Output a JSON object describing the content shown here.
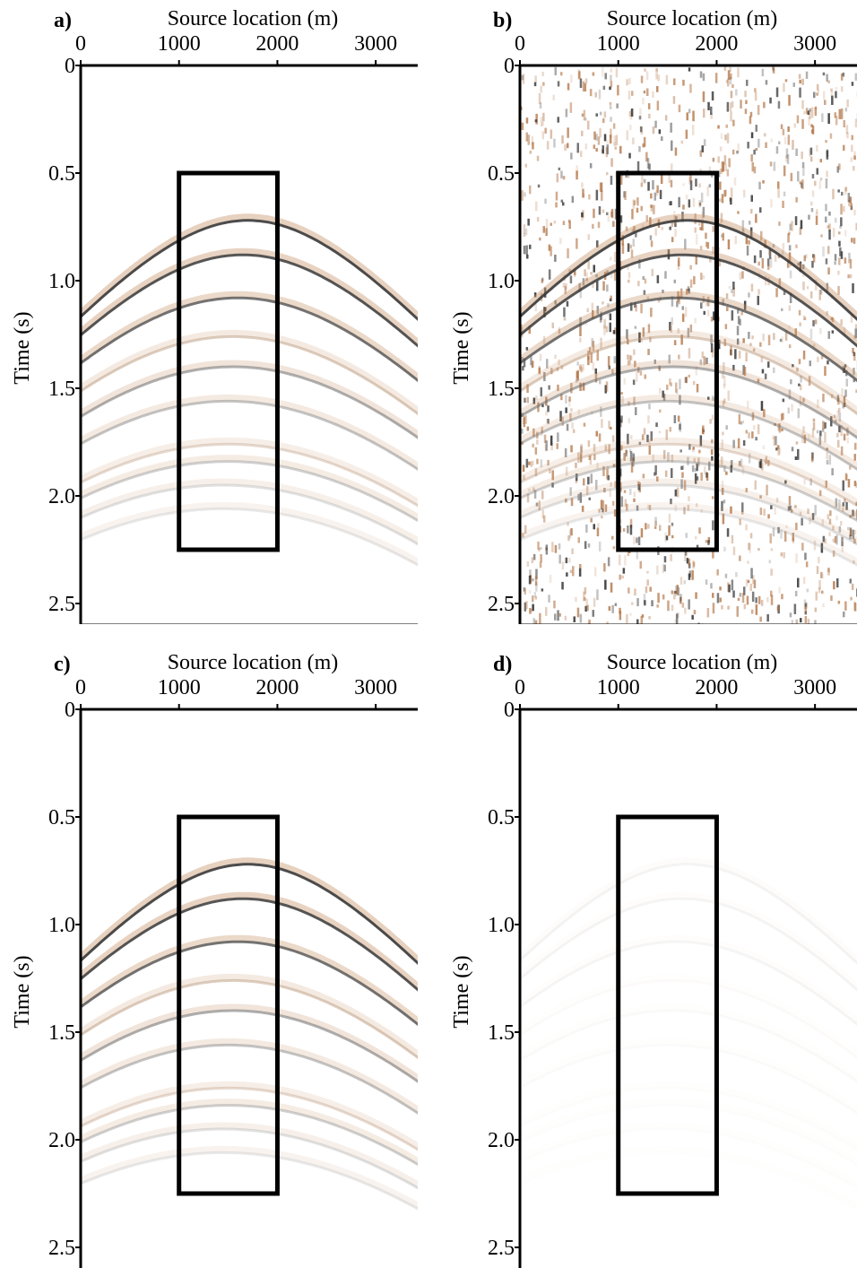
{
  "figure": {
    "panels": [
      {
        "id": "a",
        "label": "a)",
        "xlabel": "Source location (m)",
        "ylabel": "Time (s)",
        "content": "clean",
        "frame": "full"
      },
      {
        "id": "b",
        "label": "b)",
        "xlabel": "Source location (m)",
        "ylabel": "Time (s)",
        "content": "noisy",
        "frame": "left-top-bottom"
      },
      {
        "id": "c",
        "label": "c)",
        "xlabel": "Source location (m)",
        "ylabel": "Time (s)",
        "content": "denoised",
        "frame": "left-top-right"
      },
      {
        "id": "d",
        "label": "d)",
        "xlabel": "Source location (m)",
        "ylabel": "Time (s)",
        "content": "residual",
        "frame": "left-top"
      }
    ],
    "x_ticks": [
      "0",
      "1000",
      "2000",
      "3000"
    ],
    "y_ticks": [
      "0",
      "0.5",
      "1.0",
      "1.5",
      "2.0",
      "2.5"
    ]
  },
  "chart_data": {
    "type": "heatmap",
    "x_axis": {
      "label": "Source location (m)",
      "range": [
        0,
        3500
      ],
      "ticks": [
        0,
        1000,
        2000,
        3000
      ]
    },
    "y_axis": {
      "label": "Time (s)",
      "range": [
        0,
        2.6
      ],
      "ticks": [
        0,
        0.5,
        1.0,
        1.5,
        2.0,
        2.5
      ],
      "inverted": true
    },
    "highlight_box": {
      "x": [
        1000,
        2000
      ],
      "t": [
        0.5,
        2.25
      ]
    },
    "events": [
      {
        "apex_x": 1700,
        "apex_t": 0.72,
        "strength": 0.95,
        "color": "#3a3a3a"
      },
      {
        "apex_x": 1650,
        "apex_t": 0.88,
        "strength": 0.9,
        "color": "#3a3a3a"
      },
      {
        "apex_x": 1600,
        "apex_t": 1.08,
        "strength": 0.8,
        "color": "#4a4a4a"
      },
      {
        "apex_x": 1550,
        "apex_t": 1.26,
        "strength": 0.45,
        "color": "#b08a6a"
      },
      {
        "apex_x": 1550,
        "apex_t": 1.4,
        "strength": 0.55,
        "color": "#666666"
      },
      {
        "apex_x": 1500,
        "apex_t": 1.56,
        "strength": 0.45,
        "color": "#777777"
      },
      {
        "apex_x": 1500,
        "apex_t": 1.76,
        "strength": 0.35,
        "color": "#b08a6a"
      },
      {
        "apex_x": 1500,
        "apex_t": 1.84,
        "strength": 0.4,
        "color": "#808080"
      },
      {
        "apex_x": 1450,
        "apex_t": 1.95,
        "strength": 0.3,
        "color": "#909090"
      },
      {
        "apex_x": 1450,
        "apex_t": 2.06,
        "strength": 0.25,
        "color": "#a0a0a0"
      }
    ]
  },
  "colors": {
    "trace_dark": "#3a3a3a",
    "trace_brown": "#c8956a",
    "noise_dark": "#1a1a1a",
    "noise_brown": "#b07040"
  }
}
